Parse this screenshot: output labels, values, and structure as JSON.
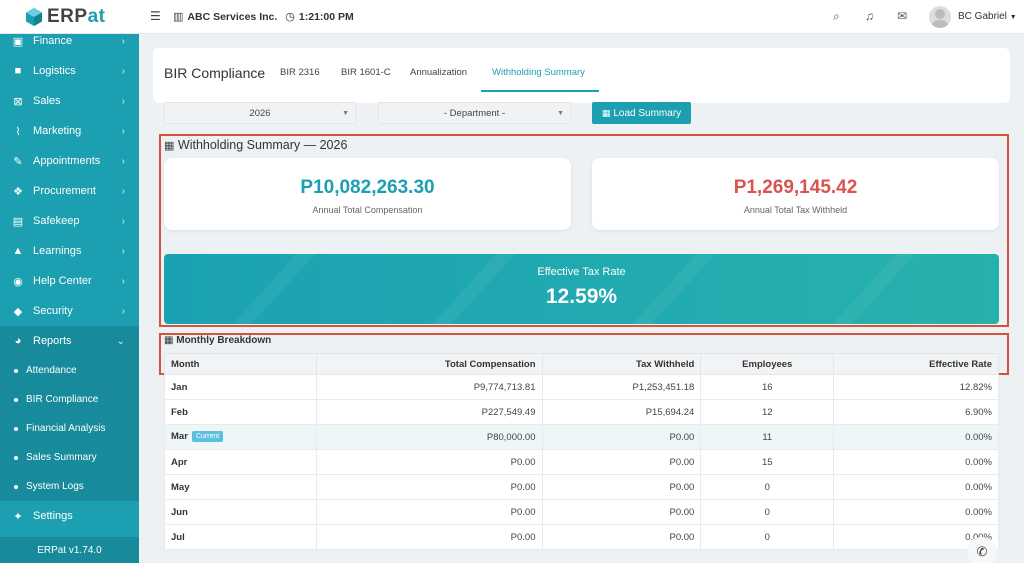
{
  "brand": {
    "name_prefix": "ERP",
    "name_suffix": "at",
    "version": "ERPat v1.74.0"
  },
  "topbar": {
    "company": "ABC Services Inc.",
    "time": "1:21:00 PM",
    "user": "BC Gabriel"
  },
  "sidebar": {
    "items": [
      {
        "label": "Finance",
        "icon": "money-icon"
      },
      {
        "label": "Logistics",
        "icon": "truck-icon"
      },
      {
        "label": "Sales",
        "icon": "cart-icon"
      },
      {
        "label": "Marketing",
        "icon": "line-chart-icon"
      },
      {
        "label": "Appointments",
        "icon": "edit-icon"
      },
      {
        "label": "Procurement",
        "icon": "cubes-icon"
      },
      {
        "label": "Safekeep",
        "icon": "archive-icon"
      },
      {
        "label": "Learnings",
        "icon": "graduation-cap-icon"
      },
      {
        "label": "Help Center",
        "icon": "life-ring-icon"
      },
      {
        "label": "Security",
        "icon": "shield-icon"
      },
      {
        "label": "Reports",
        "icon": "pie-chart-icon"
      }
    ],
    "sub_items": [
      "Attendance",
      "BIR Compliance",
      "Financial Analysis",
      "Sales Summary",
      "System Logs"
    ],
    "settings": "Settings"
  },
  "page": {
    "title": "BIR Compliance",
    "tabs": [
      "BIR 2316",
      "BIR 1601-C",
      "Annualization",
      "Withholding Summary"
    ]
  },
  "filters": {
    "year": "2026",
    "department": "- Department -",
    "load_label": "Load Summary"
  },
  "summary": {
    "title": "Withholding Summary — 2026",
    "comp_amount": "P10,082,263.30",
    "comp_label": "Annual Total Compensation",
    "tax_amount": "P1,269,145.42",
    "tax_label": "Annual Total Tax Withheld",
    "rate_label": "Effective Tax Rate",
    "rate_value": "12.59%"
  },
  "breakdown": {
    "title": "Monthly Breakdown",
    "headers": [
      "Month",
      "Total Compensation",
      "Tax Withheld",
      "Employees",
      "Effective Rate"
    ],
    "current_badge": "Current",
    "rows": [
      [
        "Jan",
        "P9,774,713.81",
        "P1,253,451.18",
        "16",
        "12.82%"
      ],
      [
        "Feb",
        "P227,549.49",
        "P15,694.24",
        "12",
        "6.90%"
      ],
      [
        "Mar",
        "P80,000.00",
        "P0.00",
        "11",
        "0.00%"
      ],
      [
        "Apr",
        "P0.00",
        "P0.00",
        "15",
        "0.00%"
      ],
      [
        "May",
        "P0.00",
        "P0.00",
        "0",
        "0.00%"
      ],
      [
        "Jun",
        "P0.00",
        "P0.00",
        "0",
        "0.00%"
      ],
      [
        "Jul",
        "P0.00",
        "P0.00",
        "0",
        "0.00%"
      ]
    ]
  },
  "colors": {
    "accent": "#1c9fb0",
    "comp": "#1c9fb0",
    "tax": "#d9534f",
    "highlight": "#d5533d"
  }
}
